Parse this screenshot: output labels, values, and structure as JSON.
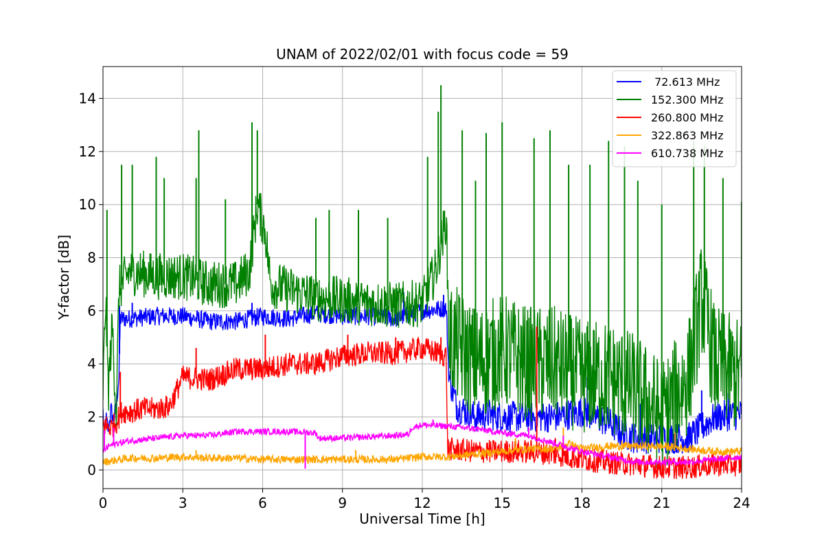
{
  "chart_data": {
    "type": "line",
    "title": "UNAM of 2022/02/01 with focus code = 59",
    "xlabel": "Universal Time [h]",
    "ylabel": "Y-factor [dB]",
    "xlim": [
      0,
      24
    ],
    "ylim": [
      -0.7,
      15.2
    ],
    "xticks": [
      0,
      3,
      6,
      9,
      12,
      15,
      18,
      21,
      24
    ],
    "yticks": [
      0,
      2,
      4,
      6,
      8,
      10,
      12,
      14
    ],
    "grid": true,
    "legend_position": "top-right",
    "series": [
      {
        "name": " 72.613 MHz",
        "color": "#0000ff",
        "points": [
          [
            0,
            2.2
          ],
          [
            0.05,
            1.3
          ],
          [
            0.1,
            2.0
          ],
          [
            0.2,
            1.5
          ],
          [
            0.3,
            2.3
          ],
          [
            0.4,
            1.8
          ],
          [
            0.5,
            2.5
          ],
          [
            0.6,
            3.5
          ],
          [
            0.65,
            5.7
          ],
          [
            1,
            5.7
          ],
          [
            2,
            5.8
          ],
          [
            3,
            5.8
          ],
          [
            4,
            5.6
          ],
          [
            5,
            5.6
          ],
          [
            6,
            5.8
          ],
          [
            7,
            5.7
          ],
          [
            8,
            5.9
          ],
          [
            9,
            5.8
          ],
          [
            10,
            5.8
          ],
          [
            11,
            5.7
          ],
          [
            12,
            6.0
          ],
          [
            12.9,
            6.1
          ],
          [
            13.0,
            3.5
          ],
          [
            13.3,
            2.4
          ],
          [
            14,
            2.0
          ],
          [
            14.5,
            2.1
          ],
          [
            15,
            2.0
          ],
          [
            16,
            2.0
          ],
          [
            17,
            2.0
          ],
          [
            18,
            2.2
          ],
          [
            19,
            1.8
          ],
          [
            19.5,
            1.4
          ],
          [
            20,
            1.2
          ],
          [
            21,
            1.2
          ],
          [
            22,
            1.2
          ],
          [
            23,
            2.0
          ],
          [
            24,
            2.1
          ]
        ],
        "spikes": [
          [
            0.62,
            6.2
          ],
          [
            1.1,
            6.3
          ],
          [
            5.6,
            6.3
          ],
          [
            11.3,
            6.7
          ],
          [
            12.8,
            6.6
          ],
          [
            18.2,
            3.5
          ],
          [
            20.2,
            2.5
          ],
          [
            22.5,
            3.0
          ],
          [
            23.5,
            2.9
          ],
          [
            24.0,
            2.5
          ]
        ]
      },
      {
        "name": "152.300 MHz",
        "color": "#008000",
        "points": [
          [
            0,
            3.0
          ],
          [
            0.1,
            6.5
          ],
          [
            0.2,
            3.0
          ],
          [
            0.35,
            5.5
          ],
          [
            0.5,
            2.0
          ],
          [
            0.6,
            6.8
          ],
          [
            1,
            7.5
          ],
          [
            2,
            7.3
          ],
          [
            3,
            7.3
          ],
          [
            4,
            7.0
          ],
          [
            5,
            7.0
          ],
          [
            5.5,
            7.5
          ],
          [
            5.8,
            10.0
          ],
          [
            6.1,
            9.0
          ],
          [
            6.3,
            7.0
          ],
          [
            7,
            6.8
          ],
          [
            8,
            6.5
          ],
          [
            9,
            6.4
          ],
          [
            10,
            6.3
          ],
          [
            11,
            6.2
          ],
          [
            12,
            6.3
          ],
          [
            12.5,
            7.5
          ],
          [
            12.9,
            9.5
          ],
          [
            13.0,
            5.0
          ],
          [
            13.5,
            4.5
          ],
          [
            14,
            4.0
          ],
          [
            15,
            4.5
          ],
          [
            16,
            4.0
          ],
          [
            17,
            4.0
          ],
          [
            18,
            3.5
          ],
          [
            19,
            3.5
          ],
          [
            20,
            3.0
          ],
          [
            21,
            2.0
          ],
          [
            22,
            3.5
          ],
          [
            22.5,
            6.5
          ],
          [
            23,
            4.0
          ],
          [
            24,
            3.5
          ]
        ],
        "spikes": [
          [
            0.15,
            9.8
          ],
          [
            0.7,
            11.5
          ],
          [
            1.1,
            11.5
          ],
          [
            2.0,
            11.8
          ],
          [
            2.3,
            11.0
          ],
          [
            3.6,
            12.8
          ],
          [
            3.5,
            11.0
          ],
          [
            4.6,
            10.2
          ],
          [
            5.6,
            13.1
          ],
          [
            5.8,
            12.8
          ],
          [
            8.0,
            9.5
          ],
          [
            8.5,
            9.8
          ],
          [
            9.6,
            9.8
          ],
          [
            10.7,
            9.5
          ],
          [
            12.2,
            11.8
          ],
          [
            12.7,
            14.5
          ],
          [
            12.6,
            13.5
          ],
          [
            13.5,
            12.8
          ],
          [
            14.0,
            10.9
          ],
          [
            14.4,
            12.7
          ],
          [
            15.0,
            13.1
          ],
          [
            16.2,
            12.5
          ],
          [
            16.8,
            12.8
          ],
          [
            17.5,
            11.5
          ],
          [
            18.3,
            11.5
          ],
          [
            19.0,
            12.4
          ],
          [
            19.6,
            12.2
          ],
          [
            20.1,
            10.9
          ],
          [
            21.0,
            10.0
          ],
          [
            22.2,
            12.4
          ],
          [
            22.6,
            12.2
          ],
          [
            23.3,
            11.0
          ],
          [
            24.0,
            10.1
          ]
        ]
      },
      {
        "name": "260.800 MHz",
        "color": "#ff0000",
        "points": [
          [
            0,
            1.7
          ],
          [
            0.3,
            1.6
          ],
          [
            0.5,
            1.8
          ],
          [
            0.7,
            2.2
          ],
          [
            1,
            2.2
          ],
          [
            1.5,
            2.3
          ],
          [
            2,
            2.3
          ],
          [
            2.5,
            2.4
          ],
          [
            3,
            3.5
          ],
          [
            4,
            3.4
          ],
          [
            5,
            3.8
          ],
          [
            6,
            3.8
          ],
          [
            7,
            4.0
          ],
          [
            8,
            4.0
          ],
          [
            9,
            4.3
          ],
          [
            10,
            4.4
          ],
          [
            11,
            4.4
          ],
          [
            12,
            4.6
          ],
          [
            12.9,
            4.3
          ],
          [
            12.95,
            0.8
          ],
          [
            13.5,
            0.75
          ],
          [
            14,
            0.7
          ],
          [
            15,
            0.7
          ],
          [
            16,
            0.7
          ],
          [
            17,
            0.6
          ],
          [
            18,
            0.4
          ],
          [
            19,
            0.3
          ],
          [
            20,
            0.2
          ],
          [
            21,
            0.1
          ],
          [
            22,
            0.1
          ],
          [
            23,
            0.2
          ],
          [
            24,
            0.2
          ]
        ],
        "spikes": [
          [
            0.65,
            3.7
          ],
          [
            3.5,
            4.6
          ],
          [
            6.1,
            5.1
          ],
          [
            9.2,
            5.1
          ],
          [
            11.0,
            5.0
          ],
          [
            12.7,
            5.0
          ],
          [
            16.3,
            5.4
          ],
          [
            17.0,
            1.2
          ]
        ]
      },
      {
        "name": "322.863 MHz",
        "color": "#ffa500",
        "points": [
          [
            0,
            0.3
          ],
          [
            1,
            0.45
          ],
          [
            2,
            0.45
          ],
          [
            3,
            0.5
          ],
          [
            4,
            0.45
          ],
          [
            5,
            0.45
          ],
          [
            6,
            0.4
          ],
          [
            7,
            0.4
          ],
          [
            8,
            0.4
          ],
          [
            9,
            0.4
          ],
          [
            10,
            0.4
          ],
          [
            11,
            0.4
          ],
          [
            12,
            0.5
          ],
          [
            13,
            0.5
          ],
          [
            14,
            0.6
          ],
          [
            15,
            0.7
          ],
          [
            16,
            0.8
          ],
          [
            17,
            0.8
          ],
          [
            17.5,
            1.0
          ],
          [
            18,
            0.8
          ],
          [
            19,
            0.9
          ],
          [
            20,
            0.9
          ],
          [
            21,
            0.9
          ],
          [
            22,
            0.8
          ],
          [
            23,
            0.7
          ],
          [
            24,
            0.7
          ]
        ],
        "spikes": [
          [
            3.5,
            0.75
          ],
          [
            9.5,
            0.75
          ],
          [
            15.5,
            1.2
          ],
          [
            17.3,
            1.6
          ],
          [
            19.5,
            1.1
          ],
          [
            21.5,
            1.4
          ]
        ]
      },
      {
        "name": "610.738 MHz",
        "color": "#ff00ff",
        "points": [
          [
            0,
            0.7
          ],
          [
            0.2,
            0.9
          ],
          [
            0.5,
            1.0
          ],
          [
            1,
            1.1
          ],
          [
            2,
            1.2
          ],
          [
            3,
            1.3
          ],
          [
            4,
            1.3
          ],
          [
            5,
            1.45
          ],
          [
            6,
            1.45
          ],
          [
            7,
            1.45
          ],
          [
            8,
            1.4
          ],
          [
            8.1,
            1.2
          ],
          [
            9,
            1.2
          ],
          [
            10,
            1.25
          ],
          [
            11,
            1.3
          ],
          [
            11.5,
            1.35
          ],
          [
            11.6,
            1.6
          ],
          [
            12,
            1.7
          ],
          [
            13,
            1.65
          ],
          [
            14,
            1.55
          ],
          [
            15,
            1.4
          ],
          [
            16,
            1.3
          ],
          [
            17,
            1.0
          ],
          [
            18,
            0.7
          ],
          [
            19,
            0.5
          ],
          [
            20,
            0.3
          ],
          [
            21,
            0.3
          ],
          [
            22,
            0.3
          ],
          [
            23,
            0.4
          ],
          [
            24,
            0.5
          ]
        ],
        "spikes": [
          [
            0.05,
            1.5
          ],
          [
            0.4,
            1.6
          ],
          [
            7.6,
            0.05
          ],
          [
            12.4,
            1.9
          ],
          [
            16.0,
            1.6
          ],
          [
            17.3,
            1.3
          ]
        ]
      }
    ]
  }
}
